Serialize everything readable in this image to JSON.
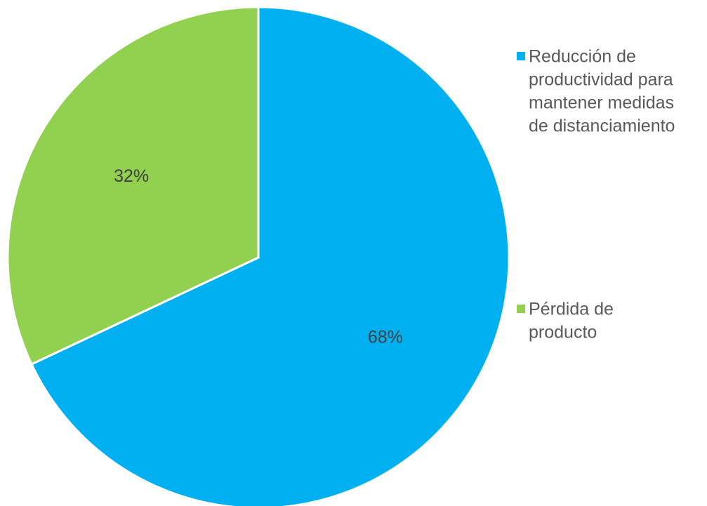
{
  "chart_data": {
    "type": "pie",
    "title": "",
    "slices": [
      {
        "label": "Reducción de productividad para mantener medidas de distanciamiento",
        "legend_lines": [
          "Reducción de",
          "productividad para",
          "mantener medidas",
          "de distanciamiento"
        ],
        "value": 68,
        "display": "68%",
        "color": "#00B0F0"
      },
      {
        "label": "Pérdida de producto",
        "legend_lines": [
          "Pérdida de",
          "producto"
        ],
        "value": 32,
        "display": "32%",
        "color": "#92D050"
      }
    ],
    "start_angle_deg": 0,
    "direction": "clockwise",
    "legend_position": "right"
  }
}
